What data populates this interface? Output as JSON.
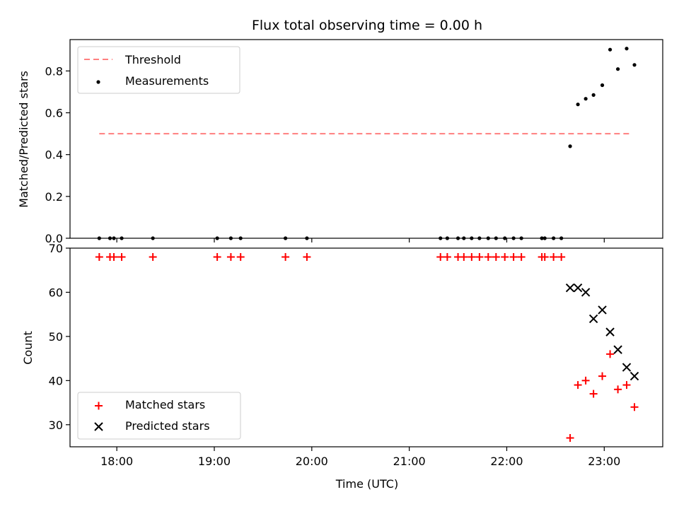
{
  "chart_data": [
    {
      "type": "scatter",
      "title": "Flux total observing time = 0.00 h",
      "xlabel": "",
      "ylabel": "Matched/Predicted stars",
      "x_unit": "hours (UTC)",
      "xlim": [
        17.52,
        23.6
      ],
      "ylim": [
        0.0,
        0.95
      ],
      "yticks": [
        0.0,
        0.2,
        0.4,
        0.6,
        0.8
      ],
      "ytick_labels": [
        "0.0",
        "0.2",
        "0.4",
        "0.6",
        "0.8"
      ],
      "legend_position": "top-left",
      "threshold": {
        "name": "Threshold",
        "value": 0.5,
        "x_range": [
          17.82,
          23.28
        ],
        "color": "#ff7f7f",
        "style": "dashed"
      },
      "series": [
        {
          "name": "Measurements",
          "color": "#000000",
          "marker": "dot",
          "points": [
            [
              17.82,
              0.0
            ],
            [
              17.93,
              0.0
            ],
            [
              17.97,
              0.0
            ],
            [
              18.05,
              0.0
            ],
            [
              18.37,
              0.0
            ],
            [
              19.03,
              0.0
            ],
            [
              19.17,
              0.0
            ],
            [
              19.27,
              0.0
            ],
            [
              19.73,
              0.0
            ],
            [
              19.95,
              0.0
            ],
            [
              21.32,
              0.0
            ],
            [
              21.39,
              0.0
            ],
            [
              21.5,
              0.0
            ],
            [
              21.56,
              0.0
            ],
            [
              21.64,
              0.0
            ],
            [
              21.72,
              0.0
            ],
            [
              21.81,
              0.0
            ],
            [
              21.89,
              0.0
            ],
            [
              21.98,
              0.0
            ],
            [
              22.07,
              0.0
            ],
            [
              22.15,
              0.0
            ],
            [
              22.36,
              0.0
            ],
            [
              22.39,
              0.0
            ],
            [
              22.48,
              0.0
            ],
            [
              22.56,
              0.0
            ],
            [
              22.65,
              0.44
            ],
            [
              22.73,
              0.64
            ],
            [
              22.81,
              0.667
            ],
            [
              22.89,
              0.685
            ],
            [
              22.98,
              0.732
            ],
            [
              23.06,
              0.902
            ],
            [
              23.14,
              0.809
            ],
            [
              23.23,
              0.907
            ],
            [
              23.31,
              0.829
            ]
          ]
        }
      ]
    },
    {
      "type": "scatter",
      "title": "",
      "xlabel": "Time (UTC)",
      "ylabel": "Count",
      "x_unit": "hours (UTC)",
      "xlim": [
        17.52,
        23.6
      ],
      "ylim": [
        25,
        70
      ],
      "yticks": [
        30,
        40,
        50,
        60,
        70
      ],
      "ytick_labels": [
        "30",
        "40",
        "50",
        "60",
        "70"
      ],
      "xticks": [
        18,
        19,
        20,
        21,
        22,
        23
      ],
      "xtick_labels": [
        "18:00",
        "19:00",
        "20:00",
        "21:00",
        "22:00",
        "23:00"
      ],
      "legend_position": "bottom-left",
      "series": [
        {
          "name": "Matched stars",
          "color": "#ff0000",
          "marker": "plus",
          "points": [
            [
              17.82,
              68
            ],
            [
              17.93,
              68
            ],
            [
              17.97,
              68
            ],
            [
              18.05,
              68
            ],
            [
              18.37,
              68
            ],
            [
              19.03,
              68
            ],
            [
              19.17,
              68
            ],
            [
              19.27,
              68
            ],
            [
              19.73,
              68
            ],
            [
              19.95,
              68
            ],
            [
              21.32,
              68
            ],
            [
              21.39,
              68
            ],
            [
              21.5,
              68
            ],
            [
              21.56,
              68
            ],
            [
              21.64,
              68
            ],
            [
              21.72,
              68
            ],
            [
              21.81,
              68
            ],
            [
              21.89,
              68
            ],
            [
              21.98,
              68
            ],
            [
              22.07,
              68
            ],
            [
              22.15,
              68
            ],
            [
              22.36,
              68
            ],
            [
              22.39,
              68
            ],
            [
              22.48,
              68
            ],
            [
              22.56,
              68
            ],
            [
              22.65,
              27
            ],
            [
              22.73,
              39
            ],
            [
              22.81,
              40
            ],
            [
              22.89,
              37
            ],
            [
              22.98,
              41
            ],
            [
              23.06,
              46
            ],
            [
              23.14,
              38
            ],
            [
              23.23,
              39
            ],
            [
              23.31,
              34
            ]
          ]
        },
        {
          "name": "Predicted stars",
          "color": "#000000",
          "marker": "x",
          "points": [
            [
              22.65,
              61
            ],
            [
              22.73,
              61
            ],
            [
              22.81,
              60
            ],
            [
              22.89,
              54
            ],
            [
              22.98,
              56
            ],
            [
              23.06,
              51
            ],
            [
              23.14,
              47
            ],
            [
              23.23,
              43
            ],
            [
              23.31,
              41
            ]
          ]
        }
      ]
    }
  ]
}
